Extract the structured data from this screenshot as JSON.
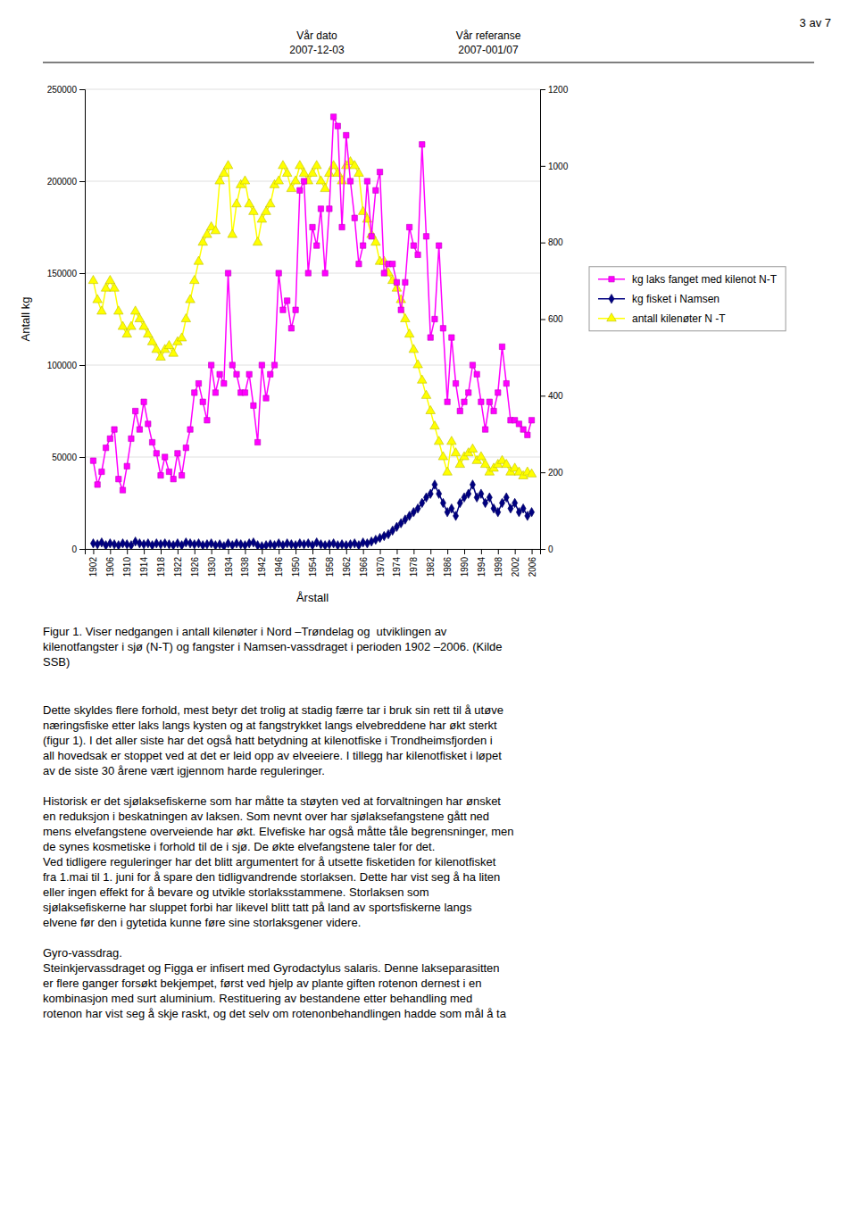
{
  "page": {
    "header": "3 av 7",
    "date_label": "Vår dato",
    "date_value": "2007-12-03",
    "ref_label": "Vår referanse",
    "ref_value": "2007-001/07",
    "caption": [
      "Figur 1. Viser nedgangen i antall kilenøter i Nord –Trøndelag og  utviklingen av",
      "kilenotfangster i sjø (N-T) og fangster i Namsen-vassdraget i perioden 1902 –2006. (Kilde",
      "SSB)"
    ],
    "body": [
      [
        "Dette skyldes flere forhold, mest betyr det trolig at stadig færre tar i bruk sin rett til å utøve",
        "næringsfiske etter laks langs kysten og at fangstrykket langs elvebreddene har økt sterkt",
        "(figur 1). I det aller siste har det også hatt betydning at kilenotfiske i Trondheimsfjorden i",
        "all hovedsak er stoppet ved at det er leid opp av elveeiere. I tillegg har kilenotfisket i løpet",
        "av de siste 30 årene vært igjennom harde reguleringer."
      ],
      [
        "Historisk er det sjølaksefiskerne som har måtte ta støyten ved at forvaltningen har ønsket",
        "en reduksjon i beskatningen av laksen. Som nevnt over har sjølaksefangstene gått ned",
        "mens elvefangstene overveiende har økt. Elvefiske har også måtte tåle begrensninger, men",
        "de synes kosmetiske i forhold til de i sjø. De økte elvefangstene taler for det.",
        "Ved tidligere reguleringer har det blitt argumentert for å utsette fisketiden for kilenotfisket",
        "fra 1.mai til 1. juni for å spare den tidligvandrende storlaksen. Dette har vist seg å ha liten",
        "eller ingen effekt for å bevare og utvikle storlaksstammene. Storlaksen som",
        "sjølaksefiskerne har sluppet forbi har likevel blitt tatt på land av sportsfiskerne langs",
        "elvene før den i gytetida kunne føre sine storlaksgener videre."
      ],
      [
        "Gyro-vassdrag.",
        "Steinkjervassdraget og Figga er infisert med Gyrodactylus salaris. Denne lakseparasitten",
        "er flere ganger forsøkt bekjempet, først ved hjelp av plante giften rotenon dernest i en",
        "kombinasjon med surt aluminium. Restituering av bestandene etter behandling med",
        "rotenon har vist seg å skje raskt, og det selv om rotenonbehandlingen hadde som mål å ta"
      ]
    ]
  },
  "chart_data": {
    "type": "line",
    "xlabel": "Årstall",
    "ylabel": "Antall kg",
    "grid": true,
    "legend": "right",
    "xlim": [
      1900,
      2008
    ],
    "xticks": [
      1902,
      1906,
      1910,
      1914,
      1918,
      1922,
      1926,
      1930,
      1934,
      1938,
      1942,
      1946,
      1950,
      1954,
      1958,
      1962,
      1966,
      1970,
      1974,
      1978,
      1982,
      1986,
      1990,
      1994,
      1998,
      2002,
      2006
    ],
    "ylim": [
      0,
      250000
    ],
    "yticks": [
      0,
      50000,
      100000,
      150000,
      200000,
      250000
    ],
    "y2lim": [
      0,
      1200
    ],
    "y2ticks": [
      0,
      200,
      400,
      600,
      800,
      1000,
      1200
    ],
    "x": [
      1902,
      1903,
      1904,
      1905,
      1906,
      1907,
      1908,
      1909,
      1910,
      1911,
      1912,
      1913,
      1914,
      1915,
      1916,
      1917,
      1918,
      1919,
      1920,
      1921,
      1922,
      1923,
      1924,
      1925,
      1926,
      1927,
      1928,
      1929,
      1930,
      1931,
      1932,
      1933,
      1934,
      1935,
      1936,
      1937,
      1938,
      1939,
      1940,
      1941,
      1942,
      1943,
      1944,
      1945,
      1946,
      1947,
      1948,
      1949,
      1950,
      1951,
      1952,
      1953,
      1954,
      1955,
      1956,
      1957,
      1958,
      1959,
      1960,
      1961,
      1962,
      1963,
      1964,
      1965,
      1966,
      1967,
      1968,
      1969,
      1970,
      1971,
      1972,
      1973,
      1974,
      1975,
      1976,
      1977,
      1978,
      1979,
      1980,
      1981,
      1982,
      1983,
      1984,
      1985,
      1986,
      1987,
      1988,
      1989,
      1990,
      1991,
      1992,
      1993,
      1994,
      1995,
      1996,
      1997,
      1998,
      1999,
      2000,
      2001,
      2002,
      2003,
      2004,
      2005,
      2006
    ],
    "series": [
      {
        "name": "kg laks fanget med kilenot N-T",
        "color": "#ff00ff",
        "marker": "square",
        "values": [
          48000,
          35000,
          42000,
          55000,
          60000,
          65000,
          38000,
          32000,
          45000,
          60000,
          75000,
          65000,
          80000,
          68000,
          58000,
          52000,
          40000,
          50000,
          42000,
          38000,
          52000,
          40000,
          55000,
          65000,
          85000,
          90000,
          80000,
          70000,
          100000,
          85000,
          95000,
          90000,
          150000,
          100000,
          95000,
          85000,
          85000,
          95000,
          78000,
          58000,
          100000,
          82000,
          95000,
          100000,
          150000,
          130000,
          135000,
          120000,
          130000,
          195000,
          200000,
          150000,
          175000,
          165000,
          185000,
          150000,
          185000,
          235000,
          230000,
          175000,
          225000,
          200000,
          180000,
          155000,
          165000,
          200000,
          170000,
          195000,
          205000,
          150000,
          155000,
          155000,
          145000,
          130000,
          145000,
          175000,
          165000,
          160000,
          220000,
          170000,
          115000,
          125000,
          165000,
          120000,
          80000,
          115000,
          90000,
          75000,
          80000,
          85000,
          100000,
          95000,
          80000,
          65000,
          80000,
          75000,
          85000,
          110000,
          90000,
          70000,
          70000,
          68000,
          65000,
          62000,
          70000
        ]
      },
      {
        "name": "kg fisket i Namsen",
        "color": "#000080",
        "marker": "diamond",
        "values": [
          3000,
          2500,
          3500,
          2000,
          3000,
          2500,
          2000,
          3000,
          2500,
          2000,
          4000,
          3000,
          2500,
          3000,
          2000,
          3000,
          2500,
          3000,
          2500,
          2000,
          3000,
          2000,
          3500,
          3000,
          2500,
          3000,
          2000,
          2500,
          3000,
          2000,
          2500,
          1500,
          3000,
          2000,
          3000,
          2500,
          2000,
          3000,
          3500,
          2000,
          1500,
          2000,
          2500,
          2000,
          3000,
          2000,
          3000,
          2500,
          2000,
          3000,
          2500,
          3000,
          2000,
          3500,
          2500,
          2000,
          2500,
          3000,
          2000,
          2500,
          2000,
          2500,
          3000,
          2000,
          3500,
          3000,
          4000,
          5000,
          6000,
          7000,
          8000,
          10000,
          12000,
          14000,
          16000,
          18000,
          20000,
          22000,
          25000,
          28000,
          30000,
          35000,
          30000,
          25000,
          20000,
          22000,
          18000,
          25000,
          28000,
          30000,
          35000,
          28000,
          30000,
          25000,
          28000,
          22000,
          20000,
          25000,
          28000,
          22000,
          25000,
          20000,
          22000,
          18000,
          20000
        ]
      },
      {
        "name": "antall kilenøter N -T",
        "color": "#ffff00",
        "marker": "triangle",
        "axis": "y2",
        "values": [
          700,
          650,
          620,
          680,
          700,
          680,
          620,
          580,
          560,
          580,
          620,
          600,
          580,
          560,
          540,
          520,
          500,
          520,
          530,
          510,
          540,
          550,
          600,
          650,
          700,
          750,
          800,
          820,
          840,
          830,
          960,
          980,
          1000,
          820,
          900,
          950,
          960,
          900,
          880,
          800,
          860,
          880,
          900,
          950,
          960,
          1000,
          980,
          940,
          960,
          1000,
          980,
          960,
          980,
          1000,
          960,
          940,
          980,
          1000,
          980,
          960,
          1000,
          1010,
          1000,
          980,
          880,
          860,
          820,
          800,
          750,
          750,
          720,
          700,
          680,
          650,
          600,
          560,
          520,
          480,
          440,
          400,
          360,
          320,
          280,
          240,
          200,
          280,
          250,
          220,
          240,
          250,
          260,
          230,
          240,
          220,
          200,
          210,
          220,
          230,
          220,
          200,
          210,
          200,
          190,
          200,
          195
        ]
      }
    ]
  }
}
